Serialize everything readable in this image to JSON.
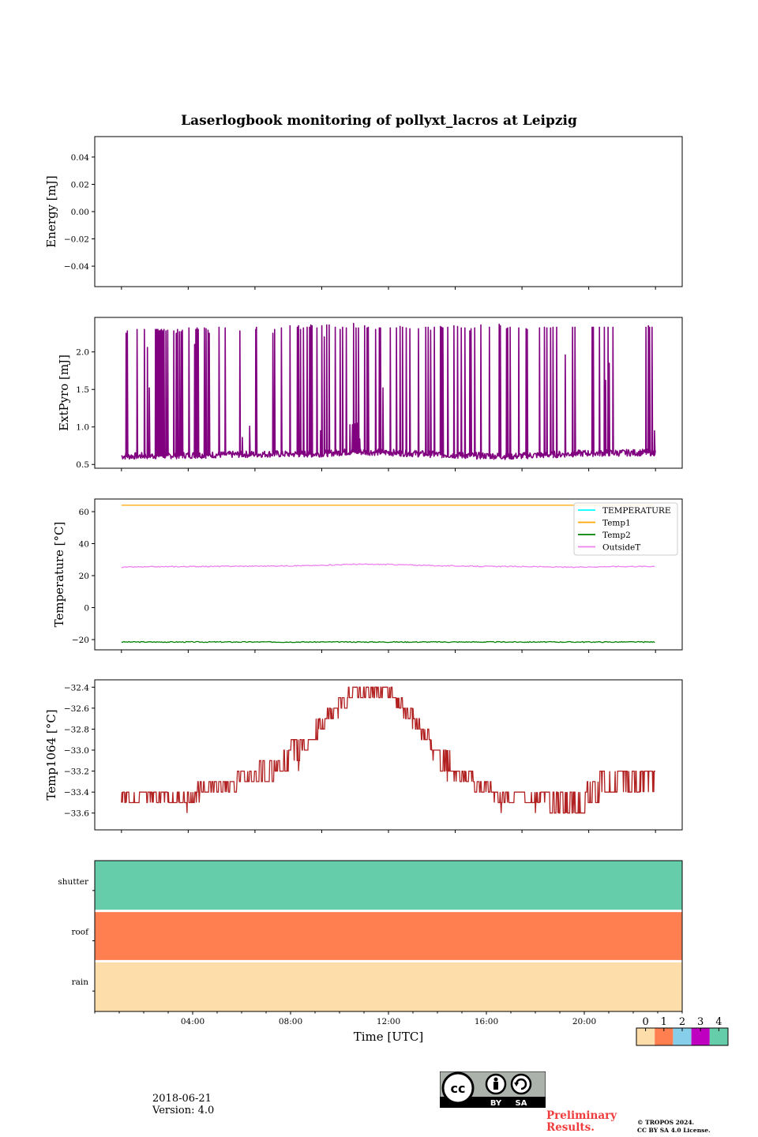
{
  "title": "Laserlogbook monitoring of pollyxt_lacros at Leipzig",
  "footer": {
    "date": "2018-06-21",
    "version": "Version: 4.0",
    "preliminary": "Preliminary Results.",
    "preliminary_line1": "Preliminary",
    "preliminary_line2": "Results.",
    "copyright_line1": "© TROPOS 2024.",
    "copyright_line2": "CC BY SA 4.0 License.",
    "cc_badge": {
      "icons": [
        "cc-icon",
        "by-icon",
        "sa-icon"
      ],
      "labels": [
        "BY",
        "SA"
      ]
    }
  },
  "chart_data": [
    {
      "id": "energy",
      "type": "line",
      "title": "",
      "xlabel": "",
      "ylabel": "Energy [mJ]",
      "ylim": [
        -0.055,
        0.055
      ],
      "yticks": [
        0.04,
        0.02,
        0.0,
        -0.02,
        -0.04
      ],
      "ytick_labels": [
        "0.04",
        "0.02",
        "0.00",
        "−0.02",
        "−0.04"
      ],
      "series": [],
      "note": "empty panel, no data plotted"
    },
    {
      "id": "extpyro",
      "type": "line",
      "xlabel": "",
      "ylabel": "ExtPyro [mJ]",
      "ylim": [
        0.45,
        2.46
      ],
      "yticks": [
        2.0,
        1.5,
        1.0,
        0.5
      ],
      "ytick_labels": [
        "2.0",
        "1.5",
        "1.0",
        "0.5"
      ],
      "x_range_hours": [
        1.07,
        22.9
      ],
      "series": [
        {
          "name": "ExtPyro",
          "color": "#800080",
          "baseline": {
            "x": [
              1.07,
              3,
              5,
              7,
              9,
              10.5,
              12,
              13.5,
              15,
              17,
              18.5,
              20,
              22.9
            ],
            "y": [
              0.61,
              0.62,
              0.63,
              0.64,
              0.64,
              0.67,
              0.66,
              0.64,
              0.62,
              0.61,
              0.63,
              0.65,
              0.66
            ]
          },
          "spikes": {
            "x": [
              1.25,
              1.3,
              1.7,
              2.0,
              2.12,
              2.2,
              2.45,
              2.5,
              2.55,
              2.6,
              2.65,
              2.7,
              2.75,
              2.8,
              2.88,
              2.95,
              3.2,
              3.3,
              3.35,
              3.43,
              3.5,
              3.55,
              3.82,
              4.05,
              4.1,
              4.15,
              4.2,
              4.45,
              4.52,
              4.6,
              4.65,
              5.05,
              5.3,
              5.9,
              6.55,
              6.58,
              7.25,
              7.32,
              7.6,
              7.95,
              8.25,
              8.3,
              8.38,
              8.5,
              8.65,
              8.75,
              8.8,
              8.85,
              9.05,
              9.25,
              9.35,
              9.45,
              9.55,
              9.8,
              10.0,
              10.1,
              10.25,
              10.55,
              10.65,
              10.75,
              11.0,
              11.1,
              11.15,
              11.45,
              11.6,
              11.65,
              11.75,
              12.05,
              12.3,
              12.45,
              12.55,
              12.7,
              12.85,
              13.2,
              13.5,
              13.6,
              13.7,
              13.85,
              14.1,
              14.15,
              14.2,
              14.4,
              14.65,
              14.8,
              14.95,
              15.1,
              15.3,
              15.35,
              15.5,
              15.75,
              16.1,
              16.5,
              16.55,
              16.8,
              16.85,
              16.95,
              17.3,
              17.6,
              17.65,
              18.15,
              18.35,
              18.45,
              18.6,
              18.7,
              18.85,
              19.2,
              19.5,
              19.6,
              20.3,
              20.35,
              20.6,
              20.8,
              20.85,
              20.95,
              21.0,
              21.15,
              22.5,
              22.6,
              22.65,
              22.75,
              22.85
            ],
            "y": [
              2.25,
              2.28,
              2.3,
              2.3,
              2.06,
              1.52,
              2.3,
              2.3,
              2.3,
              2.28,
              2.29,
              2.3,
              2.28,
              2.3,
              2.28,
              2.29,
              2.28,
              2.25,
              2.3,
              2.27,
              2.27,
              2.29,
              2.32,
              2.1,
              2.3,
              2.32,
              2.3,
              2.32,
              2.31,
              2.29,
              2.25,
              2.33,
              2.32,
              2.28,
              2.3,
              2.33,
              2.25,
              2.3,
              2.32,
              2.35,
              2.33,
              2.35,
              2.3,
              2.32,
              2.33,
              2.33,
              2.36,
              2.35,
              2.32,
              2.35,
              2.2,
              2.36,
              2.36,
              2.33,
              2.3,
              2.33,
              2.32,
              2.38,
              2.32,
              2.32,
              2.35,
              2.32,
              2.33,
              2.3,
              2.32,
              2.32,
              1.52,
              2.32,
              2.32,
              2.34,
              2.33,
              2.32,
              2.31,
              2.31,
              2.33,
              2.33,
              2.29,
              2.33,
              2.34,
              2.33,
              2.32,
              2.33,
              2.35,
              2.34,
              2.32,
              2.32,
              2.28,
              2.31,
              2.32,
              2.36,
              2.33,
              2.37,
              2.35,
              2.31,
              2.32,
              2.33,
              2.32,
              2.31,
              2.3,
              2.32,
              2.33,
              2.32,
              2.32,
              2.33,
              2.33,
              1.96,
              2.33,
              2.33,
              2.33,
              2.33,
              2.33,
              2.33,
              1.62,
              2.33,
              1.85,
              2.33,
              2.33,
              2.35,
              2.33,
              2.33,
              0.95
            ],
            "partial": {
              "x": [
                6.0,
                6.3,
                9.2,
                10.4,
                10.5,
                10.6,
                10.7,
                10.8
              ],
              "y": [
                0.86,
                1.01,
                0.95,
                1.03,
                1.03,
                1.04,
                1.05,
                0.84
              ]
            }
          }
        }
      ]
    },
    {
      "id": "temperature",
      "type": "line",
      "xlabel": "",
      "ylabel": "Temperature [°C]",
      "ylim": [
        -26.4,
        67.9
      ],
      "yticks": [
        60,
        40,
        20,
        0,
        -20
      ],
      "ytick_labels": [
        "60",
        "40",
        "20",
        "0",
        "−20"
      ],
      "legend": {
        "placement": "top-right"
      },
      "x_range_hours": [
        1.07,
        22.9
      ],
      "series": [
        {
          "name": "TEMPERATURE",
          "color": "#00ffff",
          "x": [],
          "y": []
        },
        {
          "name": "Temp1",
          "color": "#ffa500",
          "x": [
            1.07,
            22.9
          ],
          "y": [
            64.0,
            64.0
          ]
        },
        {
          "name": "Temp2",
          "color": "#008000",
          "x": [
            1.07,
            22.9
          ],
          "y": [
            -21.5,
            -21.5
          ]
        },
        {
          "name": "OutsideT",
          "color": "#ee82ee",
          "x": [
            1.07,
            3,
            5,
            7,
            9,
            10.5,
            12,
            14,
            16,
            18,
            19.5,
            21,
            22.9
          ],
          "y": [
            25.3,
            25.6,
            25.8,
            26.0,
            26.3,
            27.1,
            27.0,
            26.2,
            25.8,
            25.6,
            25.2,
            25.7,
            25.8
          ]
        }
      ]
    },
    {
      "id": "temp1064",
      "type": "line",
      "xlabel": "",
      "ylabel": "Temp1064 [°C]",
      "ylim": [
        -33.76,
        -32.33
      ],
      "yticks": [
        -32.4,
        -32.6,
        -32.8,
        -33.0,
        -33.2,
        -33.4,
        -33.6
      ],
      "ytick_labels": [
        "−32.4",
        "−32.6",
        "−32.8",
        "−33.0",
        "−33.2",
        "−33.4",
        "−33.6"
      ],
      "x_range_hours": [
        1.07,
        22.9
      ],
      "series": [
        {
          "name": "Temp1064",
          "color": "#b22222",
          "levels": {
            "x": [
              1.07,
              3.5,
              4.1,
              5.0,
              5.8,
              6.6,
              7.3,
              7.7,
              8.0,
              8.35,
              8.7,
              9.1,
              9.4,
              9.8,
              10.3,
              10.75,
              12.0,
              12.3,
              12.6,
              13.0,
              13.3,
              13.7,
              14.1,
              14.5,
              15.5,
              16.3,
              17.2,
              18.5,
              19.3,
              20.1,
              20.6,
              22.9
            ],
            "lo": [
              -33.5,
              -33.5,
              -33.4,
              -33.4,
              -33.3,
              -33.3,
              -33.2,
              -33.2,
              -33.1,
              -33.0,
              -32.9,
              -32.8,
              -32.7,
              -32.6,
              -32.5,
              -32.5,
              -32.5,
              -32.6,
              -32.7,
              -32.8,
              -32.9,
              -33.0,
              -33.2,
              -33.3,
              -33.4,
              -33.5,
              -33.5,
              -33.6,
              -33.6,
              -33.5,
              -33.4,
              -33.5
            ],
            "hi": [
              -33.4,
              -33.4,
              -33.3,
              -33.3,
              -33.2,
              -33.1,
              -33.1,
              -33.0,
              -32.9,
              -32.9,
              -32.7,
              -32.7,
              -32.6,
              -32.5,
              -32.4,
              -32.4,
              -32.4,
              -32.5,
              -32.6,
              -32.7,
              -32.8,
              -32.9,
              -33.0,
              -33.2,
              -33.3,
              -33.4,
              -33.4,
              -33.4,
              -33.4,
              -33.3,
              -33.2,
              -33.3
            ]
          },
          "min": -33.7,
          "max": -32.4
        }
      ]
    },
    {
      "id": "status",
      "type": "heatmap",
      "xlabel": "Time [UTC]",
      "ylabel": "",
      "xlim_hours": [
        0,
        24
      ],
      "xticks": [
        "04:00",
        "08:00",
        "12:00",
        "16:00",
        "20:00"
      ],
      "xtick_hours": [
        4,
        8,
        12,
        16,
        20
      ],
      "rows": [
        "shutter",
        "roof",
        "rain"
      ],
      "row_values": [
        4,
        1,
        0
      ],
      "colorbar": {
        "ticks": [
          "0",
          "1",
          "2",
          "3",
          "4"
        ],
        "colors": [
          "#fddeab",
          "#ff7f50",
          "#87ceeb",
          "#c000c0",
          "#66cdaa"
        ]
      }
    }
  ]
}
